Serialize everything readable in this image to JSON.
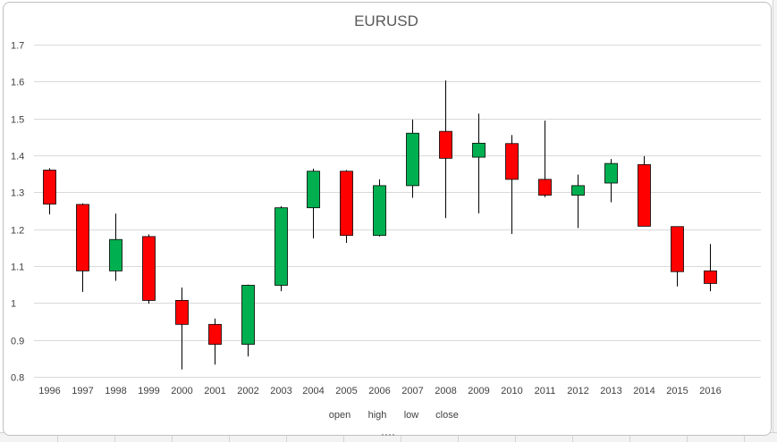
{
  "chart_data": {
    "type": "candlestick",
    "title": "EURUSD",
    "xlabel": "",
    "ylabel": "",
    "ylim": [
      0.8,
      1.7
    ],
    "yticks": [
      0.8,
      0.9,
      1,
      1.1,
      1.2,
      1.3,
      1.4,
      1.5,
      1.6,
      1.7
    ],
    "grid": true,
    "legend_position": "bottom",
    "legend": [
      "open",
      "high",
      "low",
      "close"
    ],
    "colors": {
      "up": "#00b050",
      "down": "#ff0000",
      "wick": "#000000",
      "grid": "#d9d9d9"
    },
    "categories": [
      "1996",
      "1997",
      "1998",
      "1999",
      "2000",
      "2001",
      "2002",
      "2003",
      "2004",
      "2005",
      "2006",
      "2007",
      "2008",
      "2009",
      "2010",
      "2011",
      "2012",
      "2013",
      "2014",
      "2015",
      "2016"
    ],
    "series": [
      {
        "name": "open",
        "values": [
          1.36,
          1.267,
          1.087,
          1.18,
          1.007,
          0.942,
          0.888,
          1.048,
          1.258,
          1.357,
          1.183,
          1.318,
          1.465,
          1.395,
          1.432,
          1.335,
          1.292,
          1.325,
          1.375,
          1.207,
          1.087
        ]
      },
      {
        "name": "high",
        "values": [
          1.365,
          1.27,
          1.242,
          1.186,
          1.042,
          0.958,
          1.05,
          1.262,
          1.364,
          1.36,
          1.335,
          1.497,
          1.603,
          1.513,
          1.455,
          1.494,
          1.348,
          1.39,
          1.398,
          1.207,
          1.16
        ]
      },
      {
        "name": "low",
        "values": [
          1.24,
          1.03,
          1.06,
          0.998,
          0.82,
          0.833,
          0.855,
          1.032,
          1.175,
          1.163,
          1.18,
          1.285,
          1.23,
          1.243,
          1.187,
          1.287,
          1.203,
          1.273,
          1.208,
          1.045,
          1.032
        ]
      },
      {
        "name": "close",
        "values": [
          1.268,
          1.087,
          1.172,
          1.007,
          0.942,
          0.888,
          1.048,
          1.258,
          1.357,
          1.183,
          1.318,
          1.46,
          1.392,
          1.433,
          1.335,
          1.292,
          1.318,
          1.378,
          1.208,
          1.085,
          1.053
        ]
      }
    ]
  }
}
